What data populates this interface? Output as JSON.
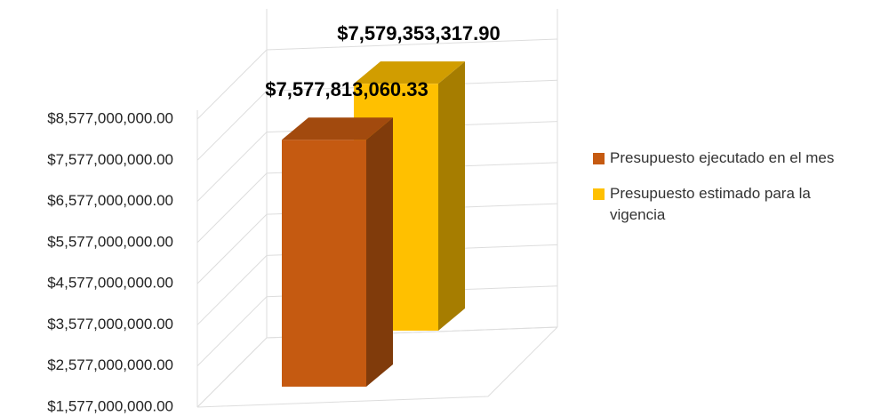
{
  "chart_data": {
    "type": "bar3d",
    "categories": [
      null
    ],
    "series": [
      {
        "name": "Presupuesto ejecutado en el mes",
        "color": "#c55a11",
        "values": [
          7577813060.33
        ],
        "value_labels": [
          "$7,577,813,060.33"
        ]
      },
      {
        "name": "Presupuesto estimado para la vigencia",
        "color": "#ffc000",
        "values": [
          7579353317.9
        ],
        "value_labels": [
          "$7,579,353,317.90"
        ]
      }
    ],
    "ylim": [
      1577000000,
      8577000000
    ],
    "yticks": [
      {
        "value": 1577000000,
        "label": "$1,577,000,000.00"
      },
      {
        "value": 2577000000,
        "label": "$2,577,000,000.00"
      },
      {
        "value": 3577000000,
        "label": "$3,577,000,000.00"
      },
      {
        "value": 4577000000,
        "label": "$4,577,000,000.00"
      },
      {
        "value": 5577000000,
        "label": "$5,577,000,000.00"
      },
      {
        "value": 6577000000,
        "label": "$6,577,000,000.00"
      },
      {
        "value": 7577000000,
        "label": "$7,577,000,000.00"
      },
      {
        "value": 8577000000,
        "label": "$8,577,000,000.00"
      }
    ],
    "grid": true,
    "legend": "right"
  }
}
